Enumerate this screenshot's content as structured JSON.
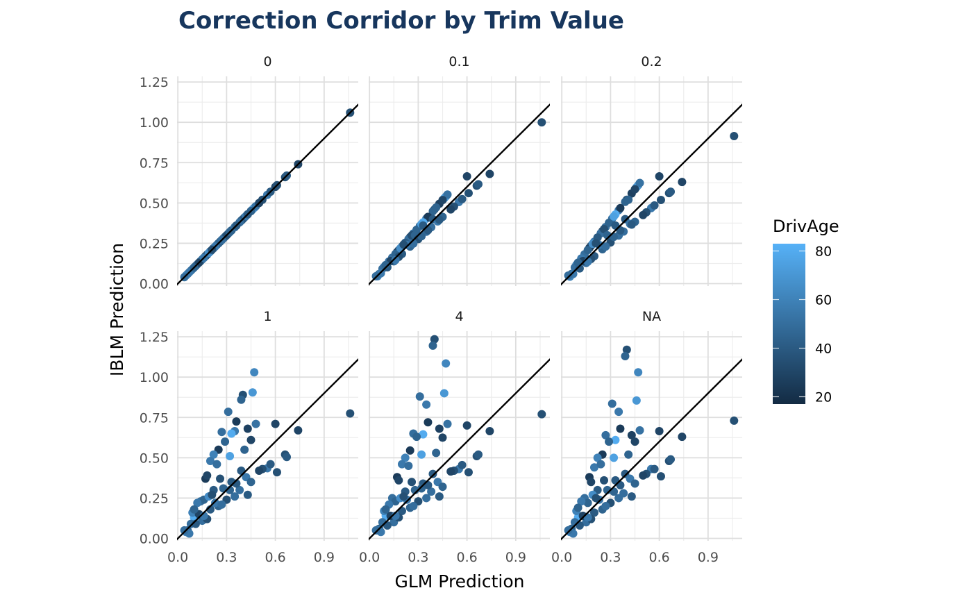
{
  "chart_data": {
    "type": "scatter",
    "title": "Correction Corridor by Trim Value",
    "xlabel": "GLM Prediction",
    "ylabel": "IBLM Prediction",
    "xlim": [
      -0.005,
      1.11
    ],
    "ylim": [
      -0.015,
      1.285
    ],
    "x_ticks": [
      0.0,
      0.3,
      0.6,
      0.9
    ],
    "x_tick_labels": [
      "0.0",
      "0.3",
      "0.6",
      "0.9"
    ],
    "y_ticks": [
      0.0,
      0.25,
      0.5,
      0.75,
      1.0,
      1.25
    ],
    "y_tick_labels": [
      "0.00",
      "0.25",
      "0.50",
      "0.75",
      "1.00",
      "1.25"
    ],
    "grid": true,
    "reference_line": "y = x",
    "legend": {
      "title": "DrivAge",
      "placement": "right",
      "type": "continuous",
      "range": [
        17,
        83
      ],
      "ticks": [
        80,
        60,
        40,
        20
      ],
      "tick_labels": [
        "80",
        "60",
        "40",
        "20"
      ],
      "low_color": "#132B43",
      "high_color": "#56B1F7"
    },
    "glm": [
      1.06,
      0.74,
      0.4,
      0.39,
      0.47,
      0.46,
      0.31,
      0.35,
      0.36,
      0.48,
      0.6,
      0.43,
      0.27,
      0.33,
      0.29,
      0.25,
      0.45,
      0.66,
      0.67,
      0.55,
      0.52,
      0.61,
      0.5,
      0.57,
      0.41,
      0.32,
      0.22,
      0.2,
      0.24,
      0.39,
      0.17,
      0.18,
      0.26,
      0.33,
      0.42,
      0.45,
      0.38,
      0.43,
      0.28,
      0.22,
      0.14,
      0.16,
      0.12,
      0.3,
      0.35,
      0.25,
      0.2,
      0.1,
      0.09,
      0.15,
      0.18,
      0.08,
      0.06,
      0.05,
      0.07,
      0.11,
      0.13,
      0.23,
      0.27,
      0.32,
      0.36,
      0.19,
      0.21,
      0.1,
      0.04,
      0.16
    ],
    "age": [
      35,
      30,
      35,
      45,
      62,
      70,
      50,
      55,
      25,
      52,
      30,
      28,
      50,
      80,
      45,
      25,
      30,
      35,
      40,
      55,
      35,
      35,
      30,
      40,
      45,
      75,
      60,
      55,
      50,
      40,
      25,
      30,
      35,
      40,
      55,
      45,
      50,
      40,
      45,
      40,
      50,
      45,
      55,
      35,
      50,
      45,
      40,
      80,
      60,
      50,
      35,
      50,
      45,
      60,
      55,
      40,
      30,
      55,
      50,
      45,
      40,
      65,
      35,
      45,
      50,
      55
    ],
    "panels": [
      {
        "label": "0",
        "iblm": [
          1.06,
          0.74,
          0.4,
          0.39,
          0.47,
          0.46,
          0.31,
          0.35,
          0.36,
          0.48,
          0.6,
          0.43,
          0.27,
          0.33,
          0.29,
          0.25,
          0.45,
          0.66,
          0.67,
          0.55,
          0.52,
          0.61,
          0.5,
          0.57,
          0.41,
          0.32,
          0.22,
          0.2,
          0.24,
          0.39,
          0.17,
          0.18,
          0.26,
          0.33,
          0.42,
          0.45,
          0.38,
          0.43,
          0.28,
          0.22,
          0.14,
          0.16,
          0.12,
          0.3,
          0.35,
          0.25,
          0.2,
          0.1,
          0.09,
          0.15,
          0.18,
          0.08,
          0.06,
          0.05,
          0.07,
          0.11,
          0.13,
          0.23,
          0.27,
          0.32,
          0.36,
          0.19,
          0.21,
          0.1,
          0.04,
          0.16
        ]
      },
      {
        "label": "0.1",
        "iblm": [
          1.0,
          0.68,
          0.46,
          0.449,
          0.54,
          0.529,
          0.357,
          0.403,
          0.414,
          0.552,
          0.665,
          0.495,
          0.311,
          0.38,
          0.334,
          0.288,
          0.518,
          0.607,
          0.616,
          0.506,
          0.478,
          0.561,
          0.46,
          0.524,
          0.472,
          0.368,
          0.253,
          0.23,
          0.276,
          0.4,
          0.196,
          0.207,
          0.299,
          0.36,
          0.386,
          0.414,
          0.35,
          0.396,
          0.3,
          0.253,
          0.161,
          0.184,
          0.138,
          0.276,
          0.322,
          0.23,
          0.184,
          0.115,
          0.104,
          0.138,
          0.166,
          0.092,
          0.06,
          0.046,
          0.064,
          0.101,
          0.14,
          0.24,
          0.248,
          0.294,
          0.331,
          0.219,
          0.242,
          0.115,
          0.046,
          0.147
        ]
      },
      {
        "label": "0.2",
        "iblm": [
          0.915,
          0.63,
          0.52,
          0.507,
          0.61,
          0.598,
          0.403,
          0.455,
          0.468,
          0.624,
          0.665,
          0.559,
          0.351,
          0.429,
          0.377,
          0.325,
          0.585,
          0.561,
          0.57,
          0.468,
          0.442,
          0.519,
          0.425,
          0.485,
          0.52,
          0.416,
          0.286,
          0.26,
          0.312,
          0.4,
          0.221,
          0.234,
          0.338,
          0.36,
          0.37,
          0.383,
          0.323,
          0.366,
          0.3,
          0.286,
          0.182,
          0.208,
          0.156,
          0.255,
          0.298,
          0.213,
          0.17,
          0.13,
          0.117,
          0.128,
          0.153,
          0.1,
          0.06,
          0.043,
          0.06,
          0.094,
          0.14,
          0.24,
          0.23,
          0.29,
          0.33,
          0.247,
          0.25,
          0.13,
          0.05,
          0.136
        ]
      },
      {
        "label": "1",
        "iblm": [
          0.775,
          0.67,
          0.89,
          0.86,
          1.03,
          0.905,
          0.785,
          0.665,
          0.725,
          0.71,
          0.71,
          0.68,
          0.66,
          0.65,
          0.6,
          0.55,
          0.61,
          0.52,
          0.505,
          0.435,
          0.43,
          0.41,
          0.42,
          0.46,
          0.55,
          0.51,
          0.52,
          0.48,
          0.46,
          0.42,
          0.37,
          0.39,
          0.37,
          0.35,
          0.38,
          0.35,
          0.3,
          0.27,
          0.31,
          0.3,
          0.23,
          0.24,
          0.22,
          0.24,
          0.26,
          0.2,
          0.18,
          0.13,
          0.16,
          0.11,
          0.12,
          0.09,
          0.05,
          0.04,
          0.03,
          0.09,
          0.15,
          0.22,
          0.21,
          0.3,
          0.34,
          0.26,
          0.27,
          0.18,
          0.05,
          0.14
        ]
      },
      {
        "label": "4",
        "iblm": [
          0.77,
          0.665,
          1.235,
          1.195,
          1.085,
          0.9,
          0.88,
          0.83,
          0.72,
          0.71,
          0.7,
          0.68,
          0.65,
          0.645,
          0.63,
          0.545,
          0.625,
          0.51,
          0.52,
          0.43,
          0.42,
          0.41,
          0.415,
          0.455,
          0.53,
          0.52,
          0.5,
          0.46,
          0.45,
          0.4,
          0.38,
          0.36,
          0.35,
          0.34,
          0.35,
          0.32,
          0.29,
          0.26,
          0.3,
          0.29,
          0.25,
          0.23,
          0.21,
          0.23,
          0.25,
          0.19,
          0.17,
          0.14,
          0.17,
          0.1,
          0.13,
          0.1,
          0.06,
          0.05,
          0.04,
          0.08,
          0.14,
          0.24,
          0.2,
          0.31,
          0.33,
          0.25,
          0.26,
          0.18,
          0.05,
          0.14
        ]
      },
      {
        "label": "NA",
        "iblm": [
          0.73,
          0.63,
          1.17,
          1.13,
          1.03,
          0.855,
          0.835,
          0.785,
          0.68,
          0.67,
          0.665,
          0.64,
          0.64,
          0.61,
          0.6,
          0.52,
          0.6,
          0.48,
          0.49,
          0.43,
          0.4,
          0.385,
          0.39,
          0.43,
          0.52,
          0.5,
          0.5,
          0.44,
          0.46,
          0.4,
          0.38,
          0.35,
          0.36,
          0.36,
          0.37,
          0.34,
          0.28,
          0.26,
          0.3,
          0.3,
          0.25,
          0.22,
          0.23,
          0.22,
          0.25,
          0.18,
          0.16,
          0.13,
          0.17,
          0.1,
          0.12,
          0.1,
          0.06,
          0.04,
          0.03,
          0.08,
          0.14,
          0.24,
          0.2,
          0.29,
          0.33,
          0.27,
          0.25,
          0.19,
          0.05,
          0.13
        ]
      }
    ]
  }
}
